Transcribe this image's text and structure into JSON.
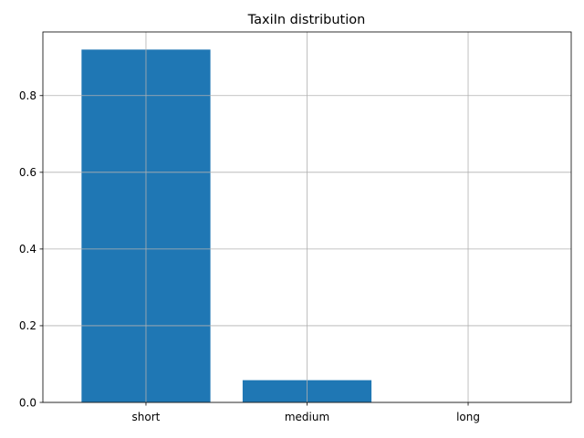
{
  "chart_data": {
    "type": "bar",
    "title": "TaxiIn distribution",
    "categories": [
      "short",
      "medium",
      "long"
    ],
    "values": [
      0.92,
      0.058,
      0.0
    ],
    "xlabel": "",
    "ylabel": "",
    "ylim": [
      0,
      0.966
    ],
    "yticks": [
      0.0,
      0.2,
      0.4,
      0.6,
      0.8
    ],
    "ytick_labels": [
      "0.0",
      "0.2",
      "0.4",
      "0.6",
      "0.8"
    ],
    "grid": true,
    "bar_color": "#1f77b4"
  }
}
